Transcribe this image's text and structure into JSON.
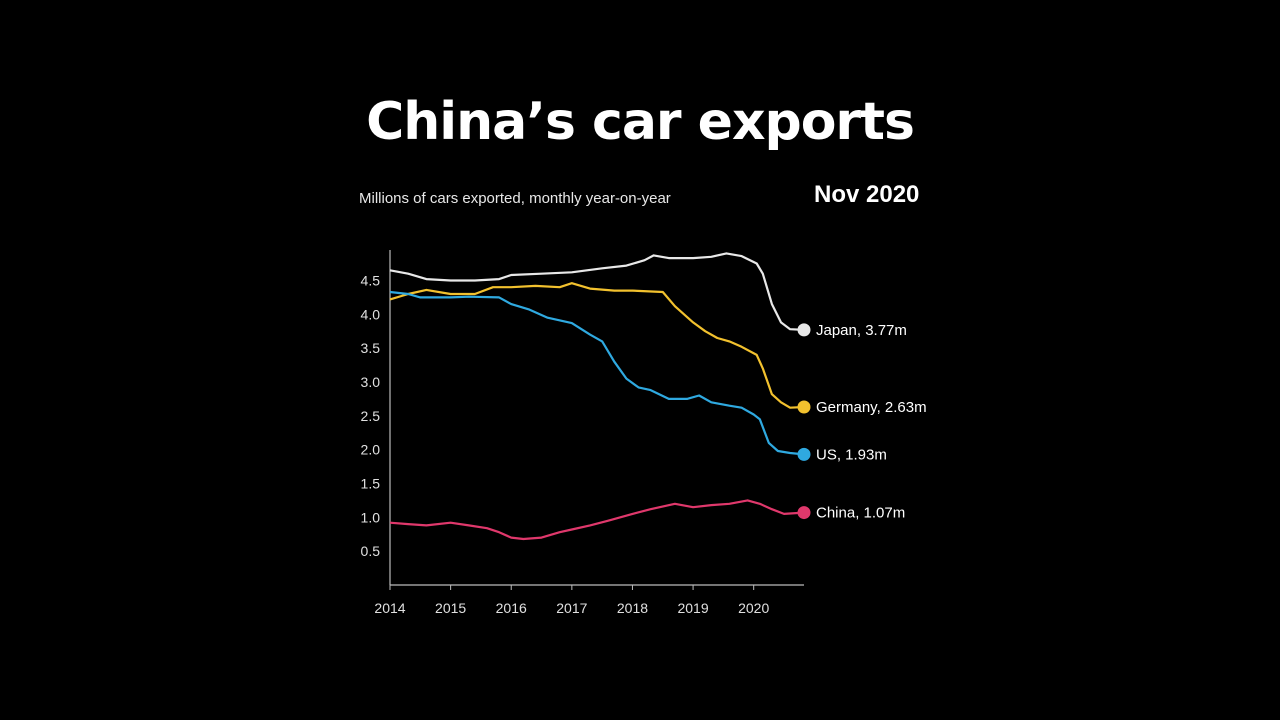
{
  "chart_data": {
    "type": "line",
    "title": "China’s car exports",
    "subtitle": "Millions of cars exported, monthly year-on-year",
    "date_label": "Nov 2020",
    "xlabel": "",
    "ylabel": "",
    "xlim": [
      2014,
      2020.83
    ],
    "ylim": [
      0,
      4.95
    ],
    "x_ticks": [
      2014,
      2015,
      2016,
      2017,
      2018,
      2019,
      2020
    ],
    "y_ticks": [
      0.5,
      1.0,
      1.5,
      2.0,
      2.5,
      3.0,
      3.5,
      4.0,
      4.5
    ],
    "grid": false,
    "legend": "end-labels",
    "series": [
      {
        "name": "Japan",
        "color": "#e8e8e8",
        "end_label": "Japan, 3.77m",
        "points": [
          [
            2014,
            4.65
          ],
          [
            2014.3,
            4.6
          ],
          [
            2014.6,
            4.52
          ],
          [
            2015,
            4.5
          ],
          [
            2015.4,
            4.5
          ],
          [
            2015.8,
            4.52
          ],
          [
            2016,
            4.58
          ],
          [
            2016.5,
            4.6
          ],
          [
            2017,
            4.62
          ],
          [
            2017.5,
            4.68
          ],
          [
            2017.9,
            4.72
          ],
          [
            2018.2,
            4.8
          ],
          [
            2018.35,
            4.87
          ],
          [
            2018.6,
            4.83
          ],
          [
            2019,
            4.83
          ],
          [
            2019.3,
            4.85
          ],
          [
            2019.55,
            4.9
          ],
          [
            2019.8,
            4.86
          ],
          [
            2020.05,
            4.75
          ],
          [
            2020.15,
            4.6
          ],
          [
            2020.3,
            4.15
          ],
          [
            2020.45,
            3.88
          ],
          [
            2020.6,
            3.78
          ],
          [
            2020.83,
            3.77
          ]
        ]
      },
      {
        "name": "Germany",
        "color": "#f2c12e",
        "end_label": "Germany, 2.63m",
        "points": [
          [
            2014,
            4.22
          ],
          [
            2014.3,
            4.3
          ],
          [
            2014.6,
            4.36
          ],
          [
            2015,
            4.3
          ],
          [
            2015.4,
            4.3
          ],
          [
            2015.7,
            4.4
          ],
          [
            2016,
            4.4
          ],
          [
            2016.4,
            4.42
          ],
          [
            2016.8,
            4.4
          ],
          [
            2017,
            4.46
          ],
          [
            2017.3,
            4.38
          ],
          [
            2017.7,
            4.35
          ],
          [
            2018,
            4.35
          ],
          [
            2018.5,
            4.33
          ],
          [
            2018.7,
            4.12
          ],
          [
            2019,
            3.88
          ],
          [
            2019.2,
            3.75
          ],
          [
            2019.4,
            3.65
          ],
          [
            2019.6,
            3.6
          ],
          [
            2019.8,
            3.52
          ],
          [
            2020.05,
            3.4
          ],
          [
            2020.15,
            3.2
          ],
          [
            2020.3,
            2.82
          ],
          [
            2020.45,
            2.7
          ],
          [
            2020.6,
            2.62
          ],
          [
            2020.83,
            2.63
          ]
        ]
      },
      {
        "name": "US",
        "color": "#2fa9e0",
        "end_label": "US, 1.93m",
        "points": [
          [
            2014,
            4.33
          ],
          [
            2014.3,
            4.3
          ],
          [
            2014.5,
            4.25
          ],
          [
            2015,
            4.25
          ],
          [
            2015.3,
            4.26
          ],
          [
            2015.8,
            4.25
          ],
          [
            2016,
            4.15
          ],
          [
            2016.3,
            4.07
          ],
          [
            2016.6,
            3.95
          ],
          [
            2017,
            3.87
          ],
          [
            2017.3,
            3.7
          ],
          [
            2017.5,
            3.6
          ],
          [
            2017.7,
            3.3
          ],
          [
            2017.9,
            3.05
          ],
          [
            2018.1,
            2.92
          ],
          [
            2018.3,
            2.88
          ],
          [
            2018.6,
            2.75
          ],
          [
            2018.9,
            2.75
          ],
          [
            2019.1,
            2.8
          ],
          [
            2019.3,
            2.7
          ],
          [
            2019.6,
            2.65
          ],
          [
            2019.8,
            2.62
          ],
          [
            2020,
            2.52
          ],
          [
            2020.1,
            2.45
          ],
          [
            2020.25,
            2.1
          ],
          [
            2020.4,
            1.98
          ],
          [
            2020.6,
            1.95
          ],
          [
            2020.83,
            1.93
          ]
        ]
      },
      {
        "name": "China",
        "color": "#e0386c",
        "end_label": "China, 1.07m",
        "points": [
          [
            2014,
            0.92
          ],
          [
            2014.3,
            0.9
          ],
          [
            2014.6,
            0.88
          ],
          [
            2015,
            0.92
          ],
          [
            2015.3,
            0.88
          ],
          [
            2015.6,
            0.84
          ],
          [
            2015.8,
            0.78
          ],
          [
            2016,
            0.7
          ],
          [
            2016.2,
            0.68
          ],
          [
            2016.5,
            0.7
          ],
          [
            2016.8,
            0.78
          ],
          [
            2017,
            0.82
          ],
          [
            2017.3,
            0.88
          ],
          [
            2017.6,
            0.95
          ],
          [
            2018,
            1.05
          ],
          [
            2018.3,
            1.12
          ],
          [
            2018.7,
            1.2
          ],
          [
            2019,
            1.15
          ],
          [
            2019.3,
            1.18
          ],
          [
            2019.6,
            1.2
          ],
          [
            2019.9,
            1.25
          ],
          [
            2020.1,
            1.2
          ],
          [
            2020.3,
            1.12
          ],
          [
            2020.5,
            1.05
          ],
          [
            2020.83,
            1.07
          ]
        ]
      }
    ]
  }
}
